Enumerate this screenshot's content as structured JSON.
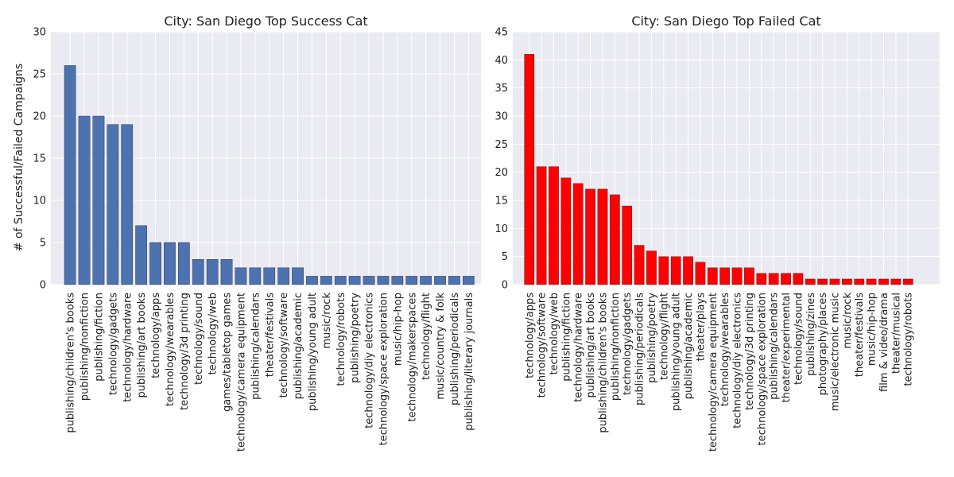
{
  "figure": {
    "ylabel": "# of Successful/Failed Campaigns"
  },
  "chart_data": [
    {
      "type": "bar",
      "title": "City: San Diego Top Success Cat",
      "xlabel": "",
      "ylabel": "# of Successful/Failed Campaigns",
      "ylim": [
        0,
        30
      ],
      "yticks": [
        0,
        5,
        10,
        15,
        20,
        25,
        30
      ],
      "grid": true,
      "bar_color": "#4c72b0",
      "categories": [
        "publishing/children's books",
        "publishing/nonfiction",
        "publishing/fiction",
        "technology/gadgets",
        "technology/hardware",
        "publishing/art books",
        "technology/apps",
        "technology/wearables",
        "technology/3d printing",
        "technology/sound",
        "technology/web",
        "games/tabletop games",
        "technology/camera equipment",
        "publishing/calendars",
        "theater/festivals",
        "technology/software",
        "publishing/academic",
        "publishing/young adult",
        "music/rock",
        "technology/robots",
        "publishing/poetry",
        "technology/diy electronics",
        "technology/space exploration",
        "music/hip-hop",
        "technology/makerspaces",
        "technology/flight",
        "music/country & folk",
        "publishing/periodicals",
        "publishing/literary journals"
      ],
      "values": [
        26,
        20,
        20,
        19,
        19,
        7,
        5,
        5,
        5,
        3,
        3,
        3,
        2,
        2,
        2,
        2,
        2,
        1,
        1,
        1,
        1,
        1,
        1,
        1,
        1,
        1,
        1,
        1,
        1
      ]
    },
    {
      "type": "bar",
      "title": "City: San Diego Top Failed Cat",
      "xlabel": "",
      "ylabel": "",
      "ylim": [
        0,
        45
      ],
      "yticks": [
        0,
        5,
        10,
        15,
        20,
        25,
        30,
        35,
        40,
        45
      ],
      "grid": true,
      "bar_color": "#ff0000",
      "categories": [
        "technology/apps",
        "technology/software",
        "technology/web",
        "publishing/fiction",
        "technology/hardware",
        "publishing/art books",
        "publishing/children's books",
        "publishing/nonfiction",
        "technology/gadgets",
        "publishing/periodicals",
        "publishing/poetry",
        "technology/flight",
        "publishing/young adult",
        "publishing/academic",
        "theater/plays",
        "technology/camera equipment",
        "technology/wearables",
        "technology/diy electronics",
        "technology/3d printing",
        "technology/space exploration",
        "publishing/calendars",
        "theater/experimental",
        "technology/sound",
        "publishing/zines",
        "photography/places",
        "music/electronic music",
        "music/rock",
        "theater/festivals",
        "music/hip-hop",
        "film & video/drama",
        "theater/musical",
        "technology/robots"
      ],
      "values": [
        41,
        21,
        21,
        19,
        18,
        17,
        17,
        16,
        14,
        7,
        6,
        5,
        5,
        5,
        4,
        3,
        3,
        3,
        3,
        2,
        2,
        2,
        2,
        1,
        1,
        1,
        1,
        1,
        1,
        1,
        1,
        1
      ]
    }
  ]
}
